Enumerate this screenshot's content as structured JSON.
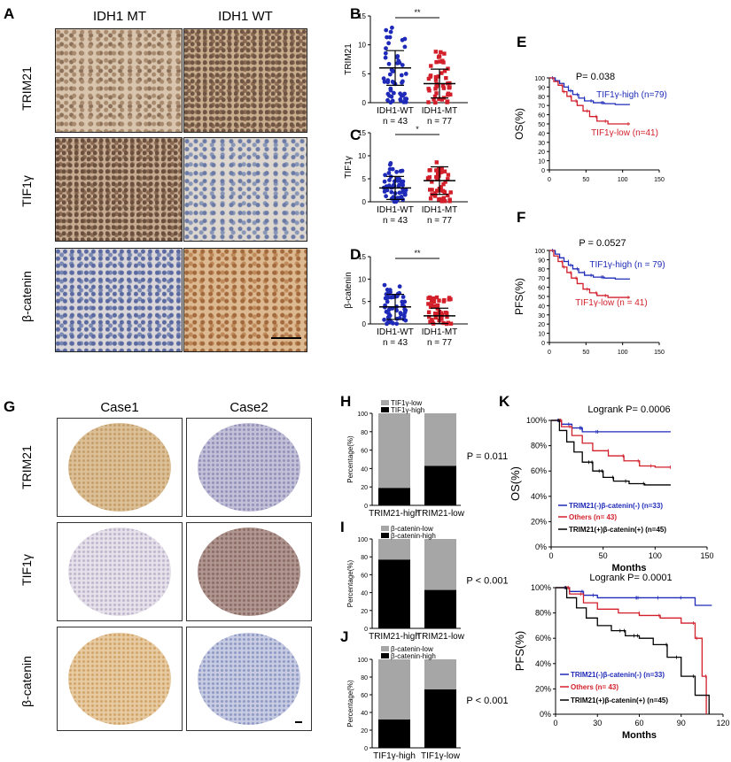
{
  "letters": {
    "A": "A",
    "B": "B",
    "C": "C",
    "D": "D",
    "E": "E",
    "F": "F",
    "G": "G",
    "H": "H",
    "I": "I",
    "J": "J",
    "K": "K"
  },
  "panelA": {
    "col1": "IDH1 MT",
    "col2": "IDH1 WT",
    "rows": [
      "TRIM21",
      "TIF1γ",
      "β-catenin"
    ]
  },
  "panelG": {
    "col1": "Case1",
    "col2": "Case2",
    "rows": [
      "TRIM21",
      "TIF1γ",
      "β-catenin"
    ]
  },
  "colors": {
    "blue": "#1f2bb8",
    "red": "#d21f2a",
    "grey": "#a6a6a6",
    "black": "#000000"
  },
  "chart_data": [
    {
      "id": "B",
      "type": "scatter",
      "ylabel": "TRIM21",
      "ylim": [
        0,
        15
      ],
      "yticks": [
        0,
        5,
        10,
        15
      ],
      "significance": "**",
      "categories": [
        "IDH1-WT\nn = 43",
        "IDH1-MT\nn = 77"
      ],
      "series": [
        {
          "mean": 6,
          "sd": 3,
          "range": [
            0,
            13
          ]
        },
        {
          "mean": 3.3,
          "sd": 2.5,
          "range": [
            0,
            9
          ]
        }
      ]
    },
    {
      "id": "C",
      "type": "scatter",
      "ylabel": "TIF1γ",
      "ylim": [
        0,
        15
      ],
      "yticks": [
        0,
        5,
        10,
        15
      ],
      "significance": "*",
      "categories": [
        "IDH1-WT\nn = 43",
        "IDH1-MT\nn = 77"
      ],
      "series": [
        {
          "mean": 3,
          "sd": 2.5,
          "range": [
            0,
            9
          ]
        },
        {
          "mean": 4.6,
          "sd": 3,
          "range": [
            0,
            9
          ]
        }
      ]
    },
    {
      "id": "D",
      "type": "scatter",
      "ylabel": "β-catenin",
      "ylim": [
        0,
        15
      ],
      "yticks": [
        0,
        5,
        10,
        15
      ],
      "significance": "**",
      "categories": [
        "IDH1-WT\nn = 43",
        "IDH1-MT\nn = 77"
      ],
      "series": [
        {
          "mean": 3.8,
          "sd": 2.8,
          "range": [
            0,
            9
          ]
        },
        {
          "mean": 1.8,
          "sd": 1.7,
          "range": [
            0,
            6
          ]
        }
      ]
    },
    {
      "id": "E",
      "type": "line",
      "ylabel": "OS(%)",
      "xlim": [
        0,
        150
      ],
      "ylim": [
        0,
        100
      ],
      "xticks": [
        0,
        50,
        100,
        150
      ],
      "yticks": [
        0,
        10,
        20,
        30,
        40,
        50,
        60,
        70,
        80,
        90,
        100
      ],
      "annotation": "P= 0.038",
      "series": [
        {
          "name": "TIF1γ-high (n=79)",
          "color": "#1f2bb8",
          "x": [
            0,
            8,
            14,
            20,
            26,
            32,
            40,
            48,
            60,
            75,
            90,
            110
          ],
          "y": [
            100,
            97,
            94,
            90,
            86,
            82,
            78,
            75,
            73,
            72,
            71,
            71
          ]
        },
        {
          "name": "TIF1γ-low (n=41)",
          "color": "#d21f2a",
          "x": [
            0,
            6,
            12,
            18,
            24,
            30,
            38,
            46,
            55,
            65,
            80,
            110
          ],
          "y": [
            100,
            96,
            92,
            85,
            80,
            75,
            70,
            64,
            58,
            53,
            50,
            50
          ]
        }
      ]
    },
    {
      "id": "F",
      "type": "line",
      "ylabel": "PFS(%)",
      "xlim": [
        0,
        150
      ],
      "ylim": [
        0,
        100
      ],
      "xticks": [
        0,
        50,
        100,
        150
      ],
      "yticks": [
        0,
        10,
        20,
        30,
        40,
        50,
        60,
        70,
        80,
        90,
        100
      ],
      "annotation": "P = 0.0527",
      "series": [
        {
          "name": "TIF1γ-high (n = 79)",
          "color": "#1f2bb8",
          "x": [
            0,
            8,
            14,
            20,
            26,
            32,
            40,
            48,
            60,
            75,
            90,
            110
          ],
          "y": [
            100,
            96,
            92,
            88,
            84,
            80,
            76,
            73,
            71,
            70,
            69,
            69
          ]
        },
        {
          "name": "TIF1γ-low (n = 41)",
          "color": "#d21f2a",
          "x": [
            0,
            6,
            12,
            18,
            24,
            30,
            38,
            46,
            55,
            65,
            80,
            110
          ],
          "y": [
            100,
            94,
            88,
            82,
            76,
            70,
            64,
            58,
            54,
            51,
            49,
            49
          ]
        }
      ]
    },
    {
      "id": "H",
      "type": "bar",
      "stacked": true,
      "ylabel": "Percentage(%)",
      "ylim": [
        0,
        100
      ],
      "yticks": [
        0,
        20,
        40,
        60,
        80,
        100
      ],
      "categories": [
        "TRIM21-high",
        "TRIM21-low"
      ],
      "annotation": "P = 0.011",
      "series": [
        {
          "name": "TIF1γ-high",
          "color": "#000000",
          "values": [
            19,
            43
          ]
        },
        {
          "name": "TIF1γ-low",
          "color": "#a6a6a6",
          "values": [
            81,
            57
          ]
        }
      ]
    },
    {
      "id": "I",
      "type": "bar",
      "stacked": true,
      "ylabel": "Percentage(%)",
      "ylim": [
        0,
        100
      ],
      "yticks": [
        0,
        20,
        40,
        60,
        80,
        100
      ],
      "categories": [
        "TRIM21-high",
        "TRIM21-low"
      ],
      "annotation": "P < 0.001",
      "series": [
        {
          "name": "β-catenin-high",
          "color": "#000000",
          "values": [
            77,
            43
          ]
        },
        {
          "name": "β-catenin-low",
          "color": "#a6a6a6",
          "values": [
            23,
            57
          ]
        }
      ]
    },
    {
      "id": "J",
      "type": "bar",
      "stacked": true,
      "ylabel": "Percentage(%)",
      "ylim": [
        0,
        100
      ],
      "yticks": [
        0,
        20,
        40,
        60,
        80,
        100
      ],
      "categories": [
        "TIF1γ-high",
        "TIF1γ-low"
      ],
      "annotation": "P < 0.001",
      "series": [
        {
          "name": "β-catenin-high",
          "color": "#000000",
          "values": [
            32,
            66
          ]
        },
        {
          "name": "β-catenin-low",
          "color": "#a6a6a6",
          "values": [
            68,
            34
          ]
        }
      ]
    },
    {
      "id": "K1",
      "type": "line",
      "ylabel": "OS(%)",
      "xlabel": "Months",
      "xlim": [
        0,
        150
      ],
      "ylim": [
        0,
        100
      ],
      "xticks": [
        0,
        50,
        100,
        150
      ],
      "yticks": [
        "0%",
        "20%",
        "40%",
        "60%",
        "80%",
        "100%"
      ],
      "annotation": "Logrank  P= 0.0006",
      "series": [
        {
          "name": "TRIM21(-)β-catenin(-) (n=33)",
          "color": "#1f2bb8",
          "x": [
            0,
            10,
            20,
            30,
            45,
            60,
            115
          ],
          "y": [
            100,
            97,
            94,
            91,
            91,
            91,
            91
          ]
        },
        {
          "name": "Others (n= 43)",
          "color": "#d21f2a",
          "x": [
            0,
            10,
            20,
            30,
            40,
            55,
            70,
            85,
            100,
            115
          ],
          "y": [
            100,
            95,
            88,
            82,
            76,
            72,
            68,
            64,
            63,
            63
          ]
        },
        {
          "name": "TRIM21(+)β-catenin(+) (n=45)",
          "color": "#000000",
          "x": [
            0,
            8,
            15,
            22,
            30,
            40,
            50,
            60,
            75,
            90,
            115
          ],
          "y": [
            100,
            92,
            83,
            75,
            67,
            60,
            55,
            52,
            50,
            49,
            49
          ]
        }
      ]
    },
    {
      "id": "K2",
      "type": "line",
      "ylabel": "PFS(%)",
      "xlabel": "Months",
      "xlim": [
        0,
        120
      ],
      "ylim": [
        0,
        100
      ],
      "xticks": [
        0,
        30,
        60,
        90,
        120
      ],
      "yticks": [
        "0%",
        "20%",
        "40%",
        "60%",
        "80%",
        "100%"
      ],
      "annotation": "Logrank  P= 0.0001",
      "series": [
        {
          "name": "TRIM21(-)β-catenin(-) (n=33)",
          "color": "#1f2bb8",
          "x": [
            0,
            10,
            20,
            30,
            45,
            60,
            75,
            90,
            100,
            105,
            112
          ],
          "y": [
            100,
            97,
            94,
            92,
            92,
            92,
            92,
            92,
            86,
            86,
            86
          ]
        },
        {
          "name": "Others (n= 43)",
          "color": "#d21f2a",
          "x": [
            0,
            10,
            20,
            30,
            45,
            60,
            75,
            90,
            100,
            105,
            108
          ],
          "y": [
            100,
            95,
            88,
            83,
            80,
            78,
            76,
            72,
            60,
            30,
            0
          ]
        },
        {
          "name": "TRIM21(+)β-catenin(+) (n=45)",
          "color": "#000000",
          "x": [
            0,
            8,
            15,
            22,
            30,
            40,
            50,
            60,
            70,
            80,
            90,
            100,
            110
          ],
          "y": [
            100,
            92,
            84,
            76,
            70,
            66,
            62,
            60,
            55,
            45,
            30,
            15,
            0
          ]
        }
      ]
    }
  ]
}
